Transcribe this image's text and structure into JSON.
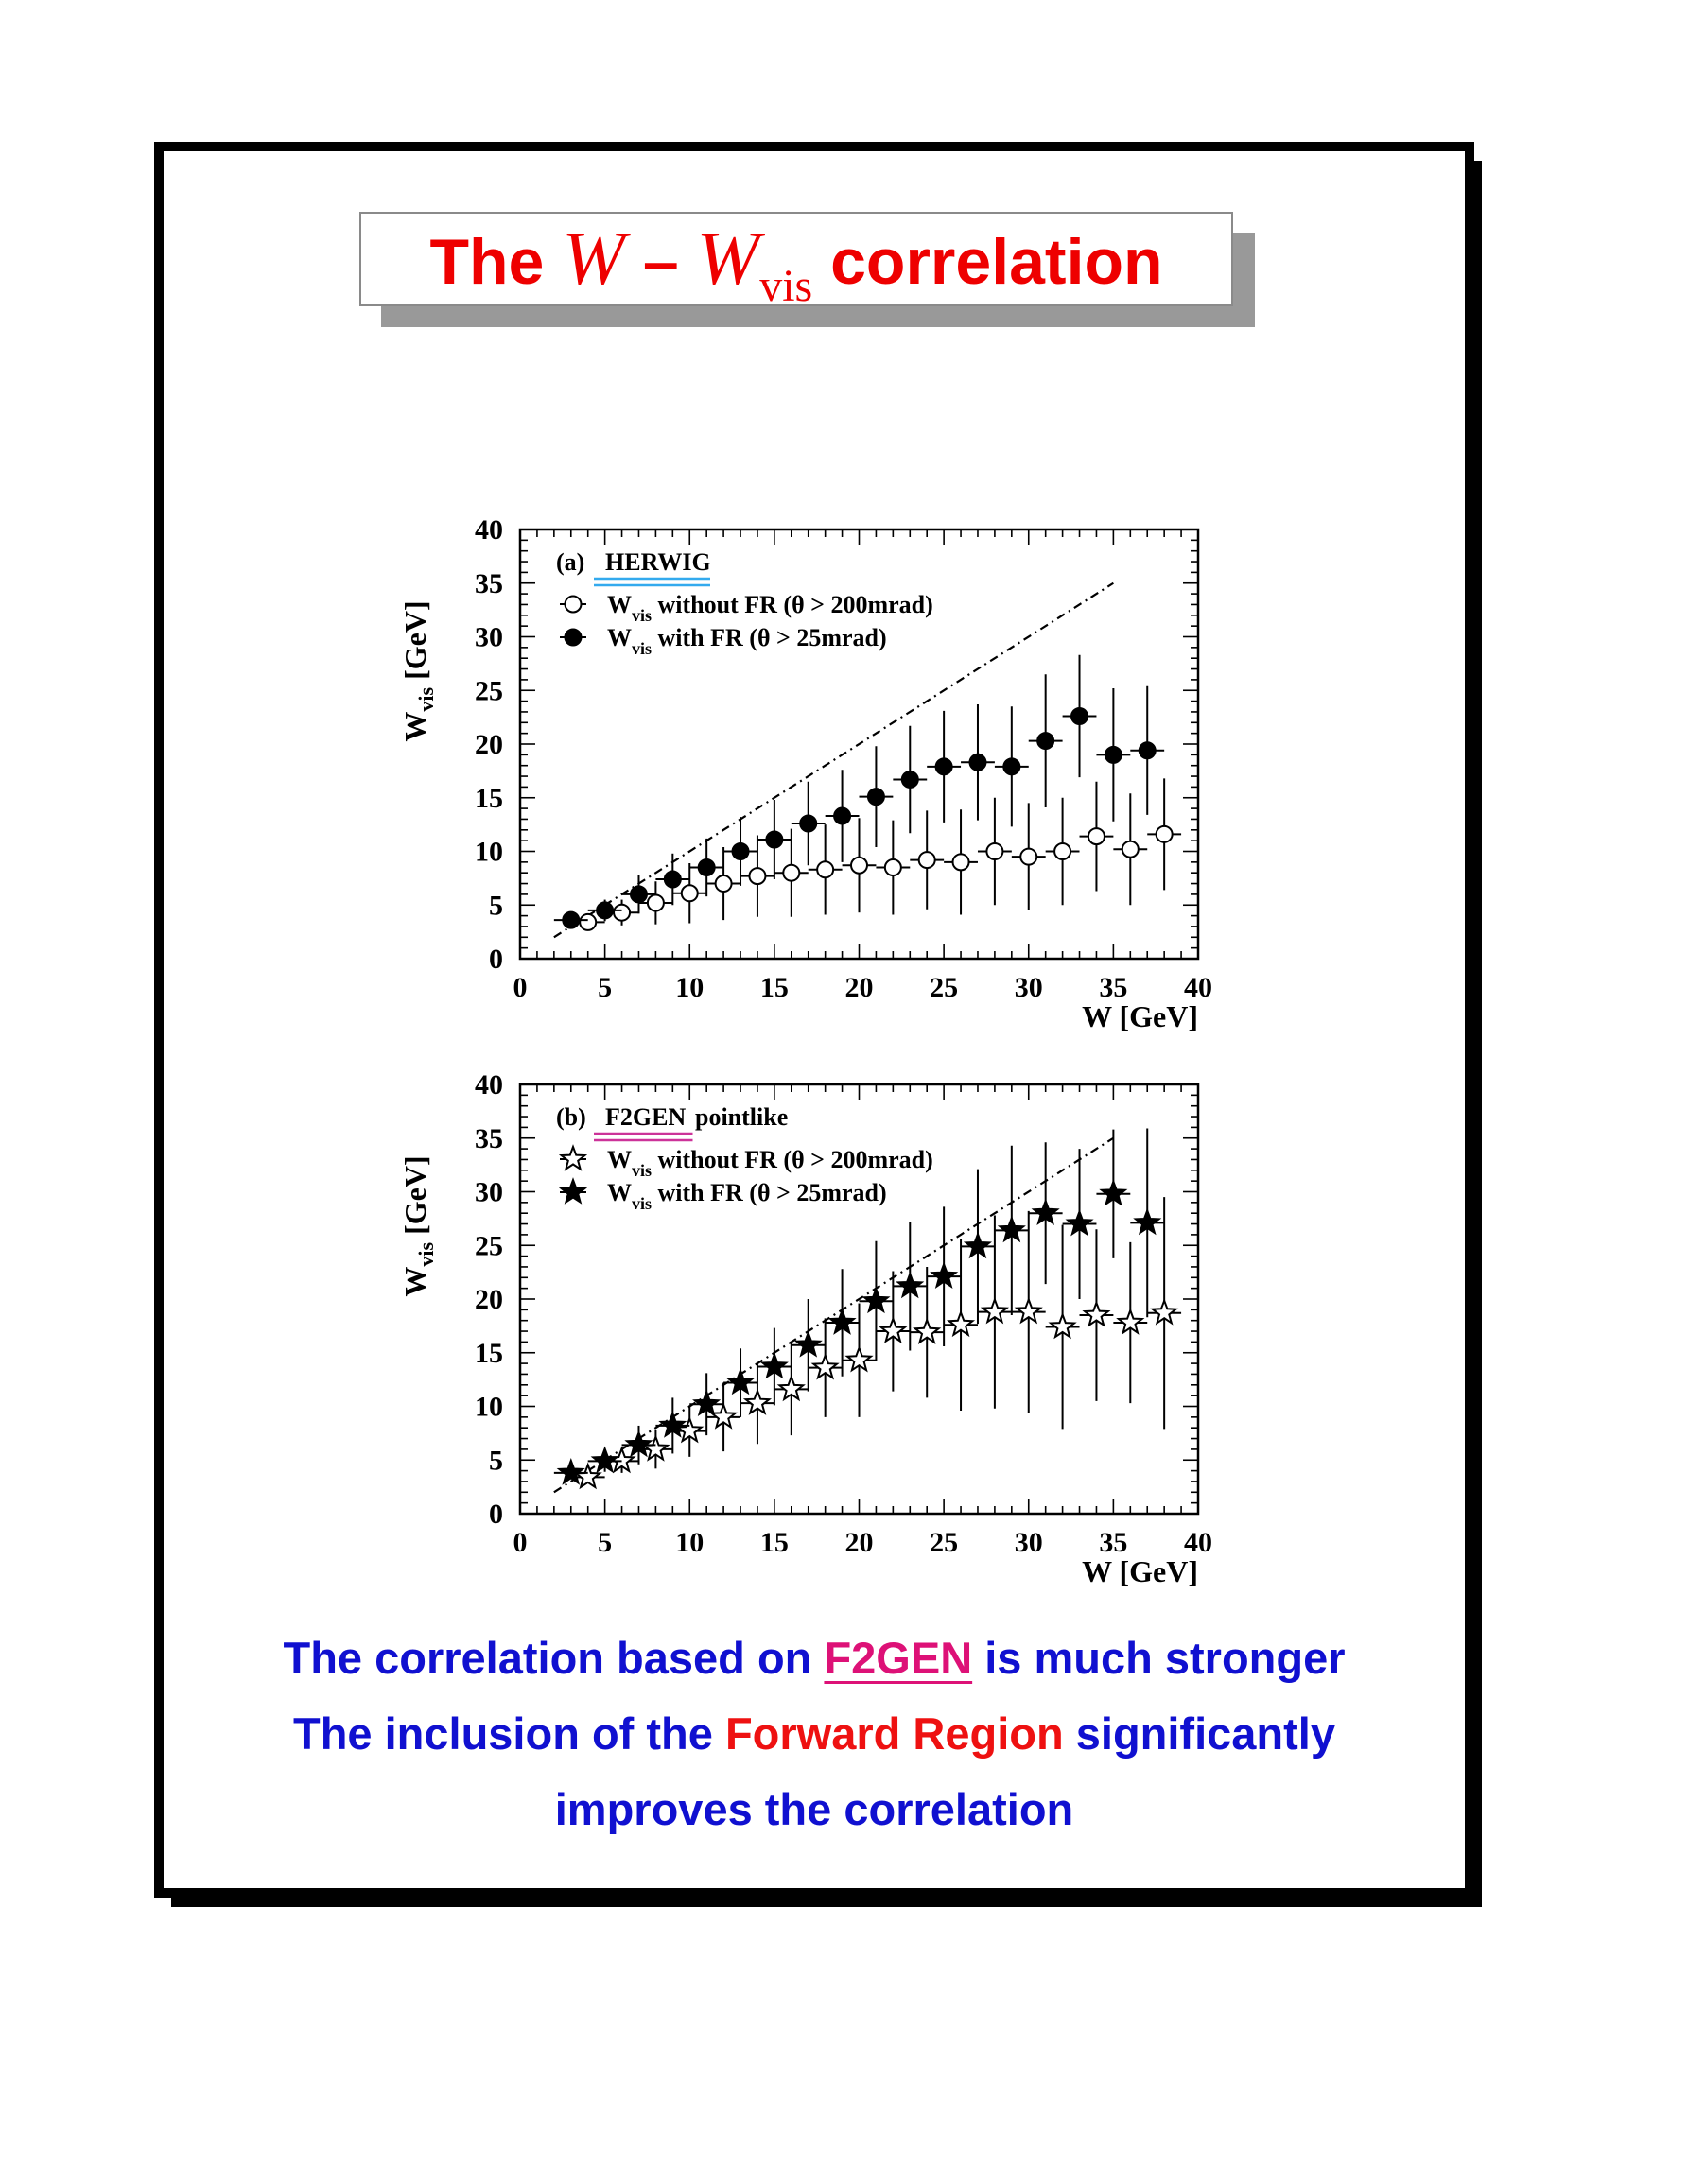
{
  "title": {
    "pre": "The",
    "w1": "W",
    "dash": "–",
    "w2": "W",
    "sub": "vis",
    "post": "correlation"
  },
  "conclusions": {
    "line1_pre": "The correlation based on",
    "line1_highlight": "F2GEN",
    "line1_post": "is much stronger",
    "line2_pre": "The inclusion of the",
    "line2_highlight": "Forward Region",
    "line2_post": "significantly",
    "line3": "improves the correlation"
  },
  "colors": {
    "title": "#ee0000",
    "text": "#1010d0",
    "highlight_red": "#ee1111",
    "highlight_magenta": "#dd1177",
    "herwig_underline": "#33aaee",
    "f2gen_underline": "#cc3399"
  },
  "chart_data": [
    {
      "type": "scatter",
      "panel": "(a)",
      "generator": "HERWIG",
      "generator_extra": "",
      "xlabel": "W  [GeV]",
      "ylabel": "W_vis [GeV]",
      "ylabel_main": "W",
      "ylabel_sub": "vis",
      "ylabel_unit": "[GeV]",
      "xlim": [
        0,
        40
      ],
      "ylim": [
        0,
        40
      ],
      "x_ticks": [
        0,
        5,
        10,
        15,
        20,
        25,
        30,
        35,
        40
      ],
      "y_ticks": [
        0,
        5,
        10,
        15,
        20,
        25,
        30,
        35,
        40
      ],
      "marker_open": "circle-open",
      "marker_filled": "circle-filled",
      "reference_line": {
        "style": "dash-dot",
        "x": [
          2,
          35
        ],
        "y": [
          2,
          35
        ]
      },
      "series": [
        {
          "legend_main": "W",
          "legend_sub": "vis",
          "legend_text": "without FR (θ > 200mrad)",
          "filled": false,
          "x": [
            4,
            6,
            8,
            10,
            12,
            14,
            16,
            18,
            20,
            22,
            24,
            26,
            28,
            30,
            32,
            34,
            36,
            38
          ],
          "y": [
            3.4,
            4.3,
            5.2,
            6.1,
            7.0,
            7.7,
            8.0,
            8.3,
            8.7,
            8.5,
            9.2,
            9.0,
            10.0,
            9.5,
            10.0,
            11.4,
            10.2,
            11.6
          ],
          "yerr": [
            0.6,
            1.2,
            2.0,
            2.8,
            3.4,
            3.8,
            4.1,
            4.2,
            4.4,
            4.4,
            4.6,
            4.9,
            5.0,
            5.0,
            5.0,
            5.1,
            5.2,
            5.2
          ]
        },
        {
          "legend_main": "W",
          "legend_sub": "vis",
          "legend_text": "with FR (θ > 25mrad)",
          "filled": true,
          "x": [
            3,
            5,
            7,
            9,
            11,
            13,
            15,
            17,
            19,
            21,
            23,
            25,
            27,
            29,
            31,
            33,
            35,
            37
          ],
          "y": [
            3.6,
            4.5,
            6.0,
            7.4,
            8.5,
            10.0,
            11.1,
            12.6,
            13.3,
            15.1,
            16.7,
            17.9,
            18.3,
            17.9,
            20.3,
            22.6,
            19.0,
            19.4
          ],
          "yerr": [
            0.6,
            1.0,
            1.8,
            2.4,
            2.7,
            3.2,
            3.7,
            3.9,
            4.3,
            4.7,
            5.0,
            5.2,
            5.4,
            5.6,
            6.2,
            5.7,
            6.2,
            6.0
          ]
        }
      ]
    },
    {
      "type": "scatter",
      "panel": "(b)",
      "generator": "F2GEN",
      "generator_extra": "pointlike",
      "xlabel": "W  [GeV]",
      "ylabel": "W_vis [GeV]",
      "ylabel_main": "W",
      "ylabel_sub": "vis",
      "ylabel_unit": "[GeV]",
      "xlim": [
        0,
        40
      ],
      "ylim": [
        0,
        40
      ],
      "x_ticks": [
        0,
        5,
        10,
        15,
        20,
        25,
        30,
        35,
        40
      ],
      "y_ticks": [
        0,
        5,
        10,
        15,
        20,
        25,
        30,
        35,
        40
      ],
      "marker_open": "star-open",
      "marker_filled": "star-filled",
      "reference_line": {
        "style": "dash-dot",
        "x": [
          2,
          35
        ],
        "y": [
          2,
          35
        ]
      },
      "series": [
        {
          "legend_main": "W",
          "legend_sub": "vis",
          "legend_text": "without FR (θ > 200mrad)",
          "filled": false,
          "x": [
            4,
            6,
            8,
            10,
            12,
            14,
            16,
            18,
            20,
            22,
            24,
            26,
            28,
            30,
            32,
            34,
            36,
            38
          ],
          "y": [
            3.4,
            4.9,
            6.0,
            7.7,
            9.0,
            10.3,
            11.6,
            13.6,
            14.3,
            17.0,
            16.9,
            17.6,
            18.8,
            18.8,
            17.4,
            18.5,
            17.8,
            18.7
          ],
          "yerr": [
            0.5,
            1.1,
            1.8,
            2.4,
            3.2,
            3.8,
            4.3,
            4.6,
            5.3,
            5.6,
            6.1,
            8.0,
            9.0,
            9.4,
            9.5,
            8.0,
            7.5,
            10.8
          ]
        },
        {
          "legend_main": "W",
          "legend_sub": "vis",
          "legend_text": "with FR (θ > 25mrad)",
          "filled": true,
          "x": [
            3,
            5,
            7,
            9,
            11,
            13,
            15,
            17,
            19,
            21,
            23,
            25,
            27,
            29,
            31,
            33,
            35,
            37
          ],
          "y": [
            3.8,
            4.9,
            6.4,
            8.2,
            10.2,
            12.2,
            13.7,
            15.7,
            17.8,
            19.8,
            21.2,
            22.1,
            24.9,
            26.4,
            28.0,
            27.0,
            29.8,
            27.1
          ],
          "yerr": [
            0.6,
            1.0,
            1.8,
            2.6,
            2.9,
            3.2,
            3.6,
            4.3,
            5.0,
            5.6,
            6.0,
            6.5,
            7.2,
            7.9,
            6.6,
            7.0,
            6.0,
            8.8
          ]
        }
      ]
    }
  ]
}
